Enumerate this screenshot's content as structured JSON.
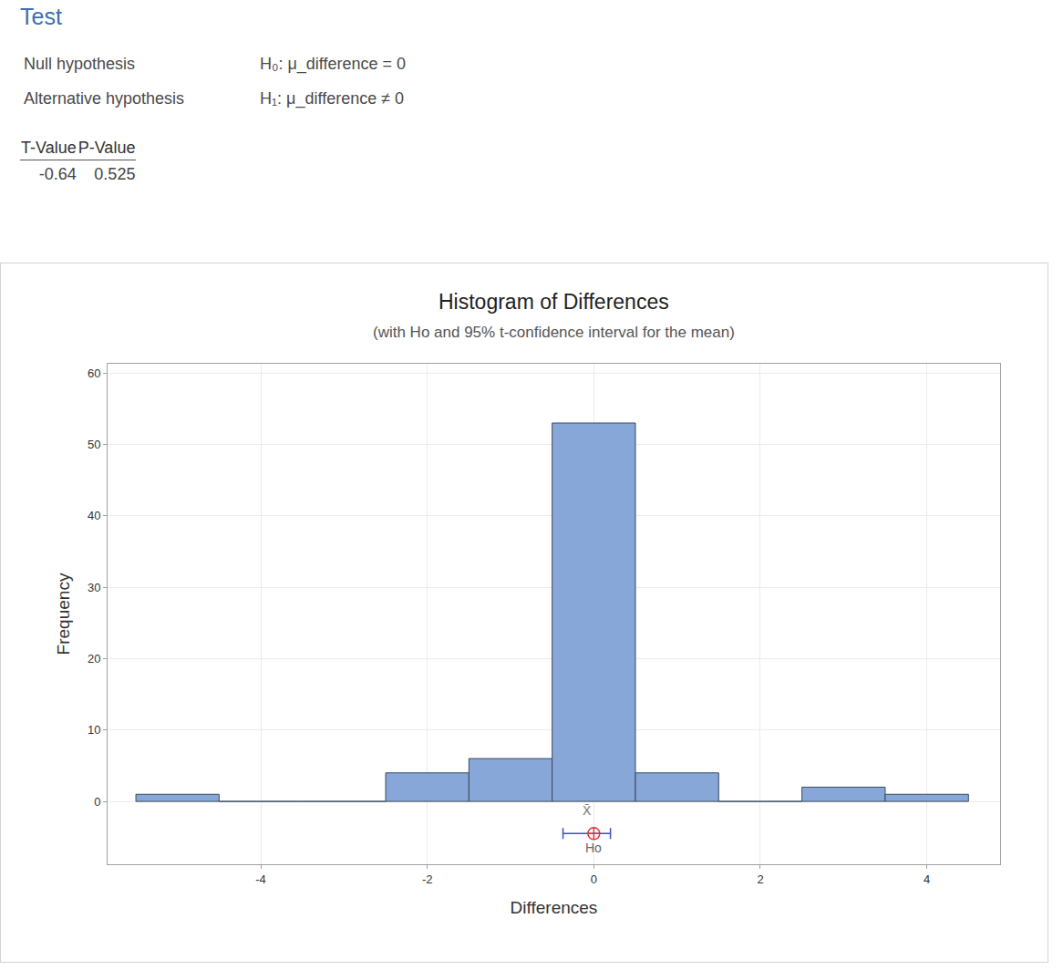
{
  "test": {
    "heading": "Test",
    "hypotheses": [
      {
        "label": "Null hypothesis",
        "text": "H₀: μ_difference = 0"
      },
      {
        "label": "Alternative hypothesis",
        "text": "H₁: μ_difference ≠ 0"
      }
    ],
    "table": {
      "columns": [
        "T-Value",
        "P-Value"
      ],
      "rows": [
        [
          -0.64,
          0.525
        ]
      ]
    }
  },
  "chart_data": {
    "type": "histogram",
    "title": "Histogram of Differences",
    "subtitle": "(with Ho and 95% t-confidence interval for the mean)",
    "x_label": "Differences",
    "y_label": "Frequency",
    "bins": [
      -5.5,
      -4.5,
      -3.5,
      -2.5,
      -1.5,
      -0.5,
      0.5,
      1.5,
      2.5,
      3.5,
      4.5
    ],
    "counts": [
      1,
      0,
      0,
      4,
      6,
      53,
      4,
      0,
      2,
      1
    ],
    "color": "#87a7d8",
    "xlim": [
      -5.84,
      4.88
    ],
    "ylim": [
      -8.8,
      61.3
    ],
    "xticks": [
      -4,
      -2,
      0,
      2,
      4
    ],
    "yticks": [
      0,
      10,
      20,
      30,
      40,
      50,
      60
    ],
    "grid": true,
    "mean": -0.08,
    "mean_label": "X̄",
    "ci": [
      -0.37,
      0.2
    ],
    "h0": 0,
    "h0_label": "Ho"
  }
}
